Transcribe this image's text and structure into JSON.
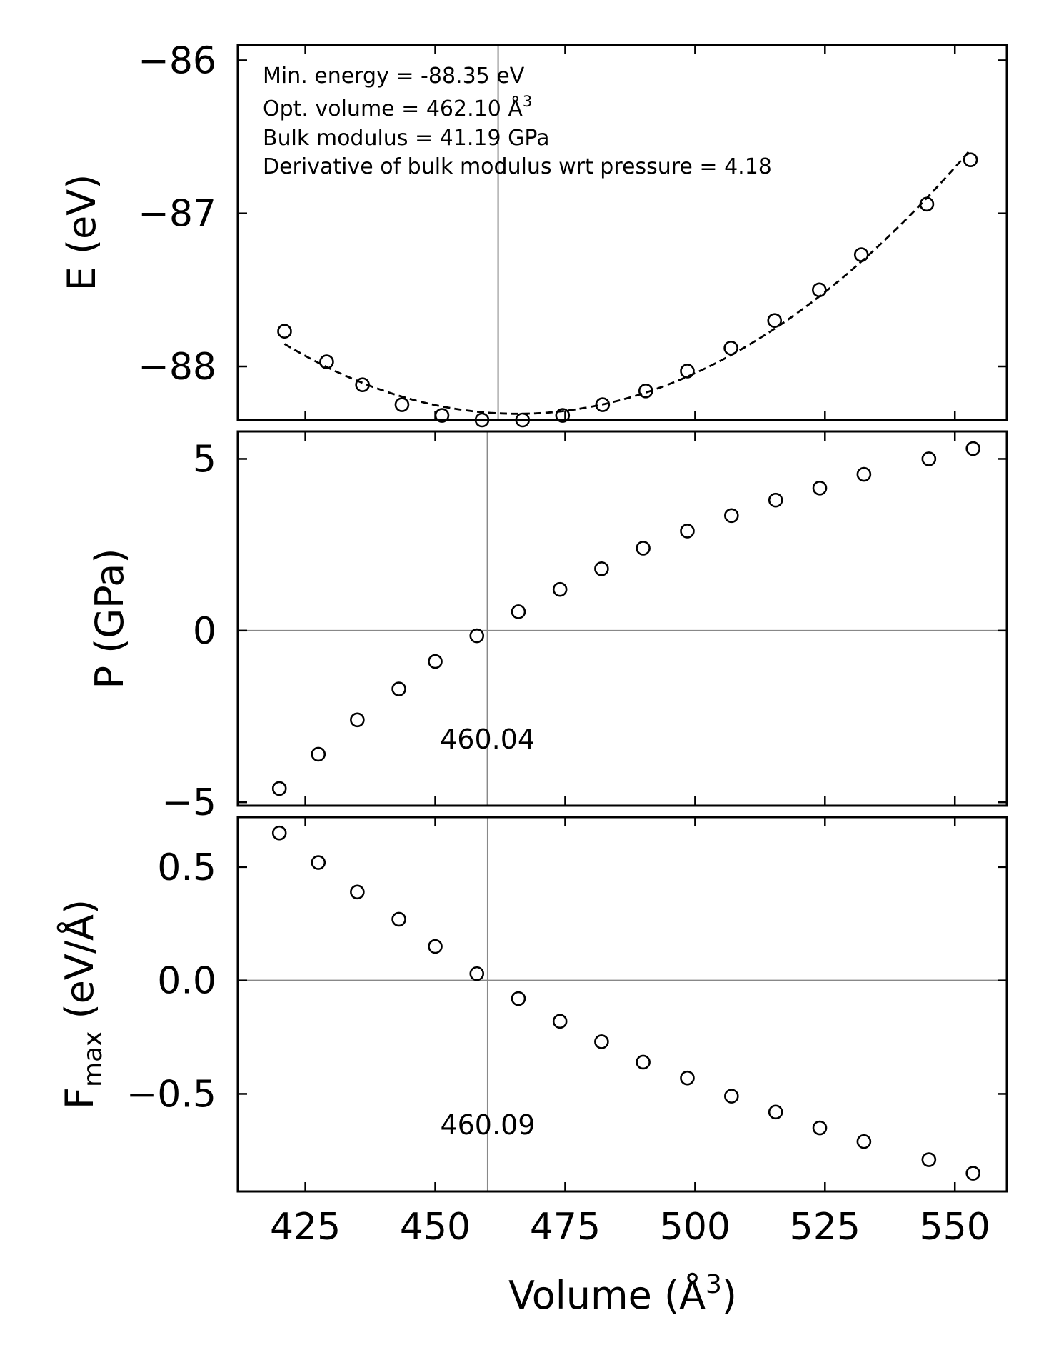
{
  "chart_data": [
    {
      "type": "scatter",
      "ylabel": "E (eV)",
      "ylim": [
        -88.35,
        -85.9
      ],
      "yticks": [
        -88,
        -87,
        -86
      ],
      "ytick_labels": [
        "−88",
        "−87",
        "−86"
      ],
      "vline_x": 462.1,
      "annotations": [
        "Min. energy = -88.35 eV",
        "Opt. volume = 462.10 Å",
        "Bulk modulus = 41.19 GPa",
        "Derivative of bulk modulus wrt pressure = 4.18"
      ],
      "annotation_superscript": "3",
      "x": [
        421.0,
        429.1,
        436.0,
        443.6,
        451.3,
        459.0,
        466.8,
        474.5,
        482.2,
        490.5,
        498.5,
        506.9,
        515.3,
        523.9,
        532.0,
        544.6,
        553.0
      ],
      "y": [
        -87.77,
        -87.97,
        -88.12,
        -88.25,
        -88.32,
        -88.35,
        -88.35,
        -88.32,
        -88.25,
        -88.16,
        -88.03,
        -87.88,
        -87.7,
        -87.5,
        -87.27,
        -86.94,
        -86.65
      ],
      "fit_label": "fit"
    },
    {
      "type": "scatter",
      "ylabel": "P (GPa)",
      "ylim": [
        -5.1,
        5.8
      ],
      "yticks": [
        -5,
        0,
        5
      ],
      "ytick_labels": [
        "−5",
        "0",
        "5"
      ],
      "vline_x": 460.04,
      "hline_y": 0,
      "vline_label": "460.04",
      "x": [
        420.0,
        427.5,
        435.0,
        443.0,
        450.0,
        458.0,
        466.0,
        474.0,
        482.0,
        490.0,
        498.5,
        507.0,
        515.5,
        524.0,
        532.5,
        545.0,
        553.5
      ],
      "y": [
        -4.6,
        -3.6,
        -2.6,
        -1.7,
        -0.9,
        -0.15,
        0.55,
        1.2,
        1.8,
        2.4,
        2.9,
        3.35,
        3.8,
        4.15,
        4.55,
        5.0,
        5.3
      ]
    },
    {
      "type": "scatter",
      "ylabel": "F",
      "ylabel_sub": "max",
      "ylabel_tail": " (eV/Å)",
      "xlabel": "Volume (Å",
      "xlabel_sup": "3",
      "xlabel_tail": ")",
      "xlim": [
        412,
        560
      ],
      "xticks": [
        425,
        450,
        475,
        500,
        525,
        550
      ],
      "xtick_labels": [
        "425",
        "450",
        "475",
        "500",
        "525",
        "550"
      ],
      "ylim": [
        -0.93,
        0.72
      ],
      "yticks": [
        -0.5,
        0.0,
        0.5
      ],
      "ytick_labels": [
        "−0.5",
        "0.0",
        "0.5"
      ],
      "vline_x": 460.09,
      "hline_y": 0,
      "vline_label": "460.09",
      "x": [
        420.0,
        427.5,
        435.0,
        443.0,
        450.0,
        458.0,
        466.0,
        474.0,
        482.0,
        490.0,
        498.5,
        507.0,
        515.5,
        524.0,
        532.5,
        545.0,
        553.5
      ],
      "y": [
        0.65,
        0.52,
        0.39,
        0.27,
        0.15,
        0.03,
        -0.08,
        -0.18,
        -0.27,
        -0.36,
        -0.43,
        -0.51,
        -0.58,
        -0.65,
        -0.71,
        -0.79,
        -0.85
      ]
    }
  ]
}
